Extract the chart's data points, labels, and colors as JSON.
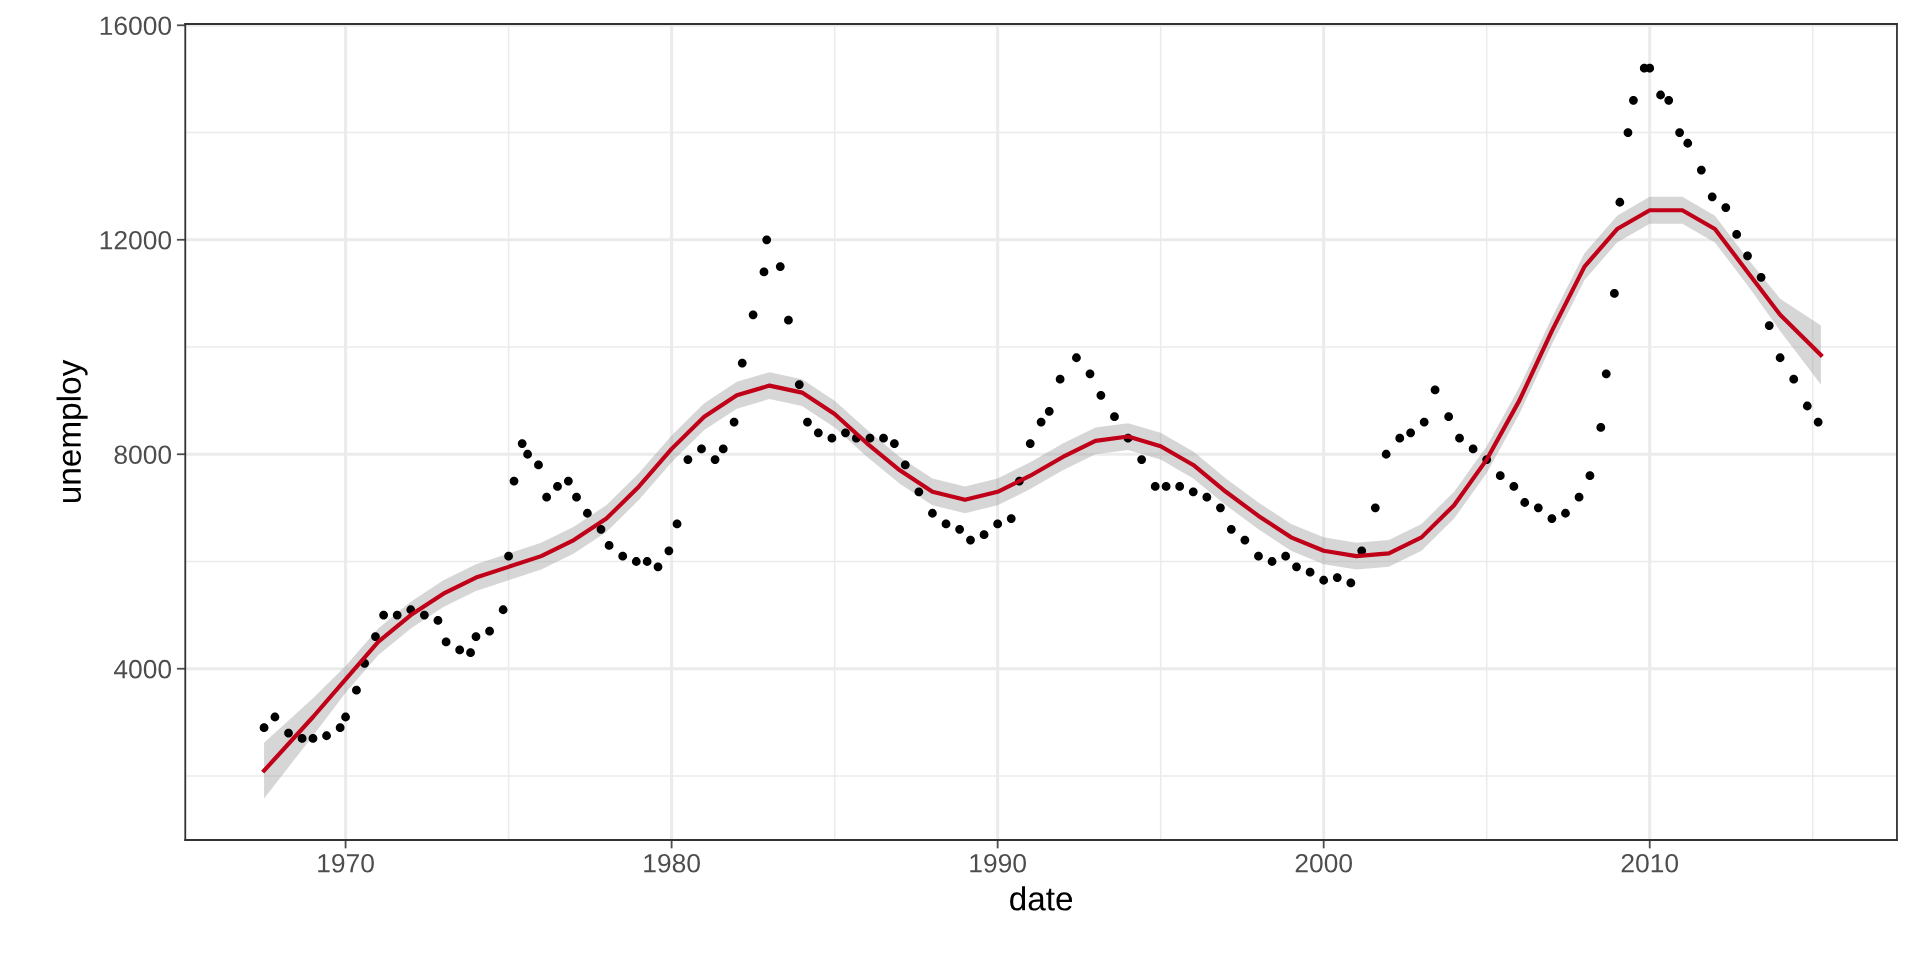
{
  "chart_data": {
    "type": "scatter",
    "xlabel": "date",
    "ylabel": "unemploy",
    "xlim": [
      "1965-02",
      "2017-08"
    ],
    "ylim": [
      806,
      16024
    ],
    "xticks": [
      "1970",
      "1980",
      "1990",
      "2000",
      "2010"
    ],
    "yticks": [
      4000,
      8000,
      12000,
      16000
    ],
    "grid": true,
    "series": [
      {
        "marker": "circle",
        "color": "#000000",
        "x": [
          "1967-07",
          "1967-11",
          "1968-04",
          "1968-09",
          "1969-01",
          "1969-06",
          "1969-11",
          "1970-01",
          "1970-05",
          "1970-08",
          "1970-12",
          "1971-03",
          "1971-08",
          "1972-01",
          "1972-06",
          "1972-11",
          "1973-02",
          "1973-07",
          "1973-11",
          "1974-01",
          "1974-06",
          "1974-11",
          "1975-01",
          "1975-03",
          "1975-06",
          "1975-08",
          "1975-12",
          "1976-03",
          "1976-07",
          "1976-11",
          "1977-02",
          "1977-06",
          "1977-11",
          "1978-02",
          "1978-07",
          "1978-12",
          "1979-04",
          "1979-08",
          "1979-12",
          "1980-03",
          "1980-07",
          "1980-12",
          "1981-05",
          "1981-08",
          "1981-12",
          "1982-03",
          "1982-07",
          "1982-11",
          "1982-12",
          "1983-05",
          "1983-08",
          "1983-12",
          "1984-03",
          "1984-07",
          "1984-12",
          "1985-05",
          "1985-09",
          "1986-02",
          "1986-07",
          "1986-11",
          "1987-03",
          "1987-08",
          "1988-01",
          "1988-06",
          "1988-11",
          "1989-03",
          "1989-08",
          "1990-01",
          "1990-06",
          "1990-09",
          "1991-01",
          "1991-05",
          "1991-08",
          "1991-12",
          "1992-06",
          "1992-11",
          "1993-03",
          "1993-08",
          "1994-01",
          "1994-06",
          "1994-11",
          "1995-03",
          "1995-08",
          "1996-01",
          "1996-06",
          "1996-11",
          "1997-03",
          "1997-08",
          "1998-01",
          "1998-06",
          "1998-11",
          "1999-03",
          "1999-08",
          "2000-01",
          "2000-06",
          "2000-11",
          "2001-03",
          "2001-08",
          "2001-12",
          "2002-05",
          "2002-09",
          "2003-02",
          "2003-06",
          "2003-11",
          "2004-03",
          "2004-08",
          "2005-01",
          "2005-06",
          "2005-11",
          "2006-03",
          "2006-08",
          "2007-01",
          "2007-06",
          "2007-11",
          "2008-03",
          "2008-07",
          "2008-09",
          "2008-12",
          "2009-02",
          "2009-05",
          "2009-07",
          "2009-11",
          "2010-01",
          "2010-05",
          "2010-08",
          "2010-12",
          "2011-03",
          "2011-08",
          "2011-12",
          "2012-05",
          "2012-09",
          "2013-01",
          "2013-06",
          "2013-09",
          "2014-01",
          "2014-06",
          "2014-11",
          "2015-03"
        ],
        "values": [
          2900,
          3100,
          2800,
          2700,
          2700,
          2750,
          2900,
          3100,
          3600,
          4100,
          4600,
          5000,
          5000,
          5100,
          5000,
          4900,
          4500,
          4350,
          4300,
          4600,
          4700,
          5100,
          6100,
          7500,
          8200,
          8000,
          7800,
          7200,
          7400,
          7500,
          7200,
          6900,
          6600,
          6300,
          6100,
          6000,
          6000,
          5900,
          6200,
          6700,
          7900,
          8100,
          7900,
          8100,
          8600,
          9700,
          10600,
          11400,
          12000,
          11500,
          10500,
          9300,
          8600,
          8400,
          8300,
          8400,
          8300,
          8300,
          8300,
          8200,
          7800,
          7300,
          6900,
          6700,
          6600,
          6400,
          6500,
          6700,
          6800,
          7500,
          8200,
          8600,
          8800,
          9400,
          9800,
          9500,
          9100,
          8700,
          8300,
          7900,
          7400,
          7400,
          7400,
          7300,
          7200,
          7000,
          6600,
          6400,
          6100,
          6000,
          6100,
          5900,
          5800,
          5650,
          5700,
          5600,
          6200,
          7000,
          8000,
          8300,
          8400,
          8600,
          9200,
          8700,
          8300,
          8100,
          7900,
          7600,
          7400,
          7100,
          7000,
          6800,
          6900,
          7200,
          7600,
          8500,
          9500,
          11000,
          12700,
          14000,
          14600,
          15200,
          15200,
          14700,
          14600,
          14000,
          13800,
          13300,
          12800,
          12600,
          12100,
          11700,
          11300,
          10400,
          9800,
          9400,
          8900,
          8600
        ]
      },
      {
        "type": "line",
        "color": "#c00018",
        "marker": "none",
        "line_style": "solid",
        "x": [
          "1967-07",
          "1969-01",
          "1970-01",
          "1971-01",
          "1972-01",
          "1973-01",
          "1974-01",
          "1975-01",
          "1976-01",
          "1977-01",
          "1978-01",
          "1979-01",
          "1980-01",
          "1981-01",
          "1982-01",
          "1983-01",
          "1984-01",
          "1985-01",
          "1986-01",
          "1987-01",
          "1988-01",
          "1989-01",
          "1990-01",
          "1991-01",
          "1992-01",
          "1993-01",
          "1994-01",
          "1995-01",
          "1996-01",
          "1997-01",
          "1998-01",
          "1999-01",
          "2000-01",
          "2001-01",
          "2002-01",
          "2003-01",
          "2004-01",
          "2005-01",
          "2006-01",
          "2007-01",
          "2008-01",
          "2009-01",
          "2010-01",
          "2011-01",
          "2012-01",
          "2013-01",
          "2014-01",
          "2015-04"
        ],
        "values": [
          2100,
          3100,
          3800,
          4500,
          5000,
          5400,
          5700,
          5900,
          6100,
          6400,
          6800,
          7400,
          8100,
          8700,
          9100,
          9280,
          9150,
          8750,
          8200,
          7700,
          7300,
          7150,
          7300,
          7600,
          7950,
          8250,
          8330,
          8150,
          7800,
          7300,
          6850,
          6450,
          6200,
          6100,
          6150,
          6450,
          7050,
          7900,
          9000,
          10300,
          11500,
          12200,
          12550,
          12550,
          12200,
          11400,
          10600,
          9850
        ],
        "lower": [
          1580,
          2750,
          3550,
          4250,
          4750,
          5150,
          5450,
          5650,
          5850,
          6150,
          6550,
          7150,
          7850,
          8450,
          8850,
          9030,
          8900,
          8500,
          7950,
          7450,
          7050,
          6900,
          7050,
          7350,
          7700,
          8000,
          8080,
          7900,
          7550,
          7050,
          6600,
          6200,
          5950,
          5850,
          5900,
          6200,
          6800,
          7650,
          8750,
          10050,
          11250,
          11950,
          12300,
          12300,
          11950,
          11150,
          10300,
          9300
        ],
        "upper": [
          2620,
          3450,
          4050,
          4750,
          5250,
          5650,
          5950,
          6150,
          6350,
          6650,
          7050,
          7650,
          8350,
          8950,
          9350,
          9530,
          9400,
          9000,
          8450,
          7950,
          7550,
          7400,
          7550,
          7850,
          8200,
          8500,
          8580,
          8400,
          8050,
          7550,
          7100,
          6700,
          6450,
          6350,
          6400,
          6700,
          7300,
          8150,
          9250,
          10550,
          11750,
          12450,
          12800,
          12800,
          12450,
          11650,
          10900,
          10400
        ]
      }
    ]
  }
}
